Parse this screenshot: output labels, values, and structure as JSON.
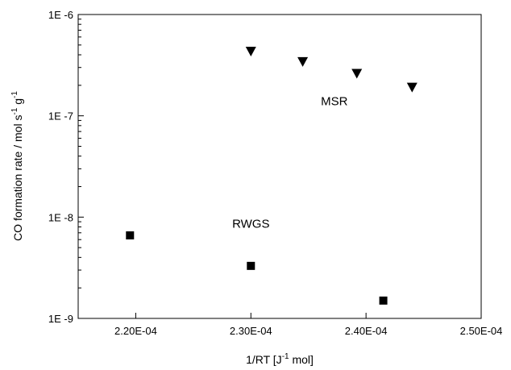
{
  "chart_data": {
    "type": "scatter",
    "title": "",
    "xlabel": "1/RT [J-1 mol]",
    "ylabel": "CO formation rate / mol s-1 g-1",
    "xlabel_parts": {
      "pre": "1/RT [J",
      "sup": "-1",
      "post": " mol]"
    },
    "ylabel_parts": {
      "pre": "CO formation rate / mol s",
      "sup1": "-1",
      "mid": " g",
      "sup2": "-1"
    },
    "xlim": [
      0.000215,
      0.00025
    ],
    "ylim": [
      1e-09,
      1e-06
    ],
    "yscale": "log",
    "grid": false,
    "x_ticks": [
      {
        "value": 0.00022,
        "label": "2.20E-04"
      },
      {
        "value": 0.00023,
        "label": "2.30E-04"
      },
      {
        "value": 0.00024,
        "label": "2.40E-04"
      },
      {
        "value": 0.00025,
        "label": "2.50E-04"
      }
    ],
    "y_ticks": [
      {
        "value": 1e-09,
        "label": "1E -9"
      },
      {
        "value": 1e-08,
        "label": "1E -8"
      },
      {
        "value": 1e-07,
        "label": "1E -7"
      },
      {
        "value": 1e-06,
        "label": "1E -6"
      }
    ],
    "series": [
      {
        "name": "MSR",
        "marker": "triangle-down",
        "points": [
          {
            "x": 0.00023,
            "y": 4.3e-07
          },
          {
            "x": 0.0002345,
            "y": 3.4e-07
          },
          {
            "x": 0.0002392,
            "y": 2.6e-07
          },
          {
            "x": 0.000244,
            "y": 1.9e-07
          }
        ]
      },
      {
        "name": "RWGS",
        "marker": "square",
        "points": [
          {
            "x": 0.0002195,
            "y": 6.6e-09
          },
          {
            "x": 0.00023,
            "y": 3.3e-09
          },
          {
            "x": 0.0002415,
            "y": 1.5e-09
          }
        ]
      }
    ],
    "annotations": [
      {
        "text": "MSR",
        "x": 0.00023725,
        "y": 1.4e-07
      },
      {
        "text": "RWGS",
        "x": 0.00023,
        "y": 8.6e-09
      }
    ]
  }
}
